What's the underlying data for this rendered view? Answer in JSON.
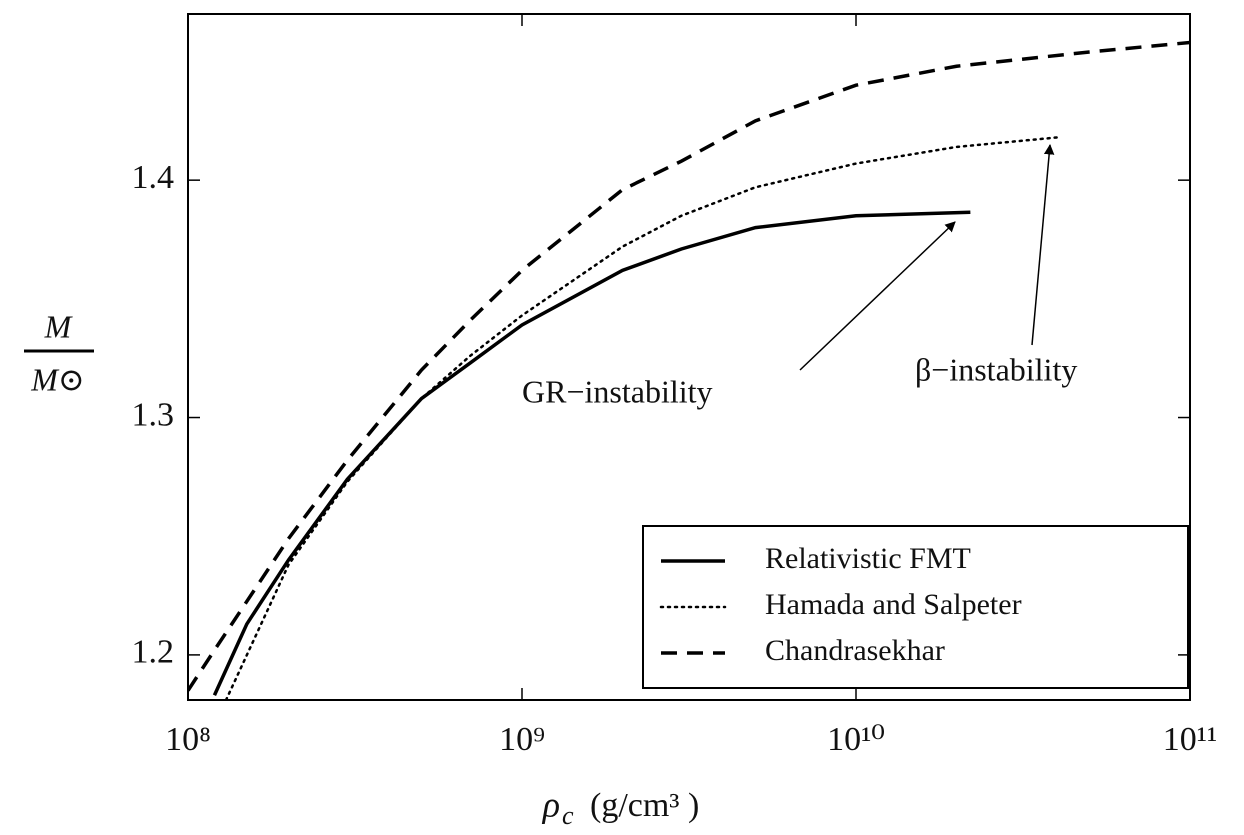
{
  "chart_data": {
    "type": "line",
    "x_label": {
      "symbol": "ρ",
      "subscript": "c",
      "unit": "(g/cm³ )"
    },
    "y_label": {
      "numerator": "M",
      "denominator": "M⊙"
    },
    "x_scale": "log",
    "xlim": [
      100000000,
      100000000000
    ],
    "xticks": [
      {
        "value": 100000000,
        "label": "10⁸"
      },
      {
        "value": 1000000000,
        "label": "10⁹"
      },
      {
        "value": 10000000000,
        "label": "10¹⁰"
      },
      {
        "value": 100000000000,
        "label": "10¹¹"
      }
    ],
    "ylim": [
      1.181,
      1.47
    ],
    "yticks": [
      1.2,
      1.3,
      1.4
    ],
    "legend": "lower right",
    "series": [
      {
        "name": "Relativistic FMT",
        "color": "#000000",
        "linestyle": "solid",
        "x": [
          120000000,
          150000000,
          200000000,
          300000000,
          500000000,
          700000000,
          1000000000,
          2000000000,
          3000000000,
          5000000000,
          10000000000,
          22000000000
        ],
        "values": [
          1.183,
          1.213,
          1.24,
          1.274,
          1.308,
          1.323,
          1.339,
          1.362,
          1.371,
          1.38,
          1.385,
          1.3865
        ]
      },
      {
        "name": "Hamada and Salpeter",
        "color": "#000000",
        "linestyle": "dotted",
        "x": [
          130000000,
          200000000,
          300000000,
          500000000,
          700000000,
          1000000000,
          2000000000,
          3000000000,
          5000000000,
          10000000000,
          20000000000,
          40000000000
        ],
        "values": [
          1.181,
          1.238,
          1.273,
          1.308,
          1.326,
          1.343,
          1.372,
          1.385,
          1.397,
          1.407,
          1.414,
          1.418
        ]
      },
      {
        "name": "Chandrasekhar",
        "color": "#000000",
        "linestyle": "dashed",
        "x": [
          100000000,
          120000000,
          200000000,
          300000000,
          500000000,
          700000000,
          1000000000,
          2000000000,
          3000000000,
          5000000000,
          10000000000,
          20000000000,
          50000000000,
          100000000000
        ],
        "values": [
          1.185,
          1.202,
          1.249,
          1.282,
          1.32,
          1.341,
          1.362,
          1.396,
          1.408,
          1.425,
          1.44,
          1.448,
          1.454,
          1.458
        ]
      }
    ],
    "annotations": [
      {
        "text": "GR−instability"
      },
      {
        "text": "β−instability"
      }
    ]
  }
}
